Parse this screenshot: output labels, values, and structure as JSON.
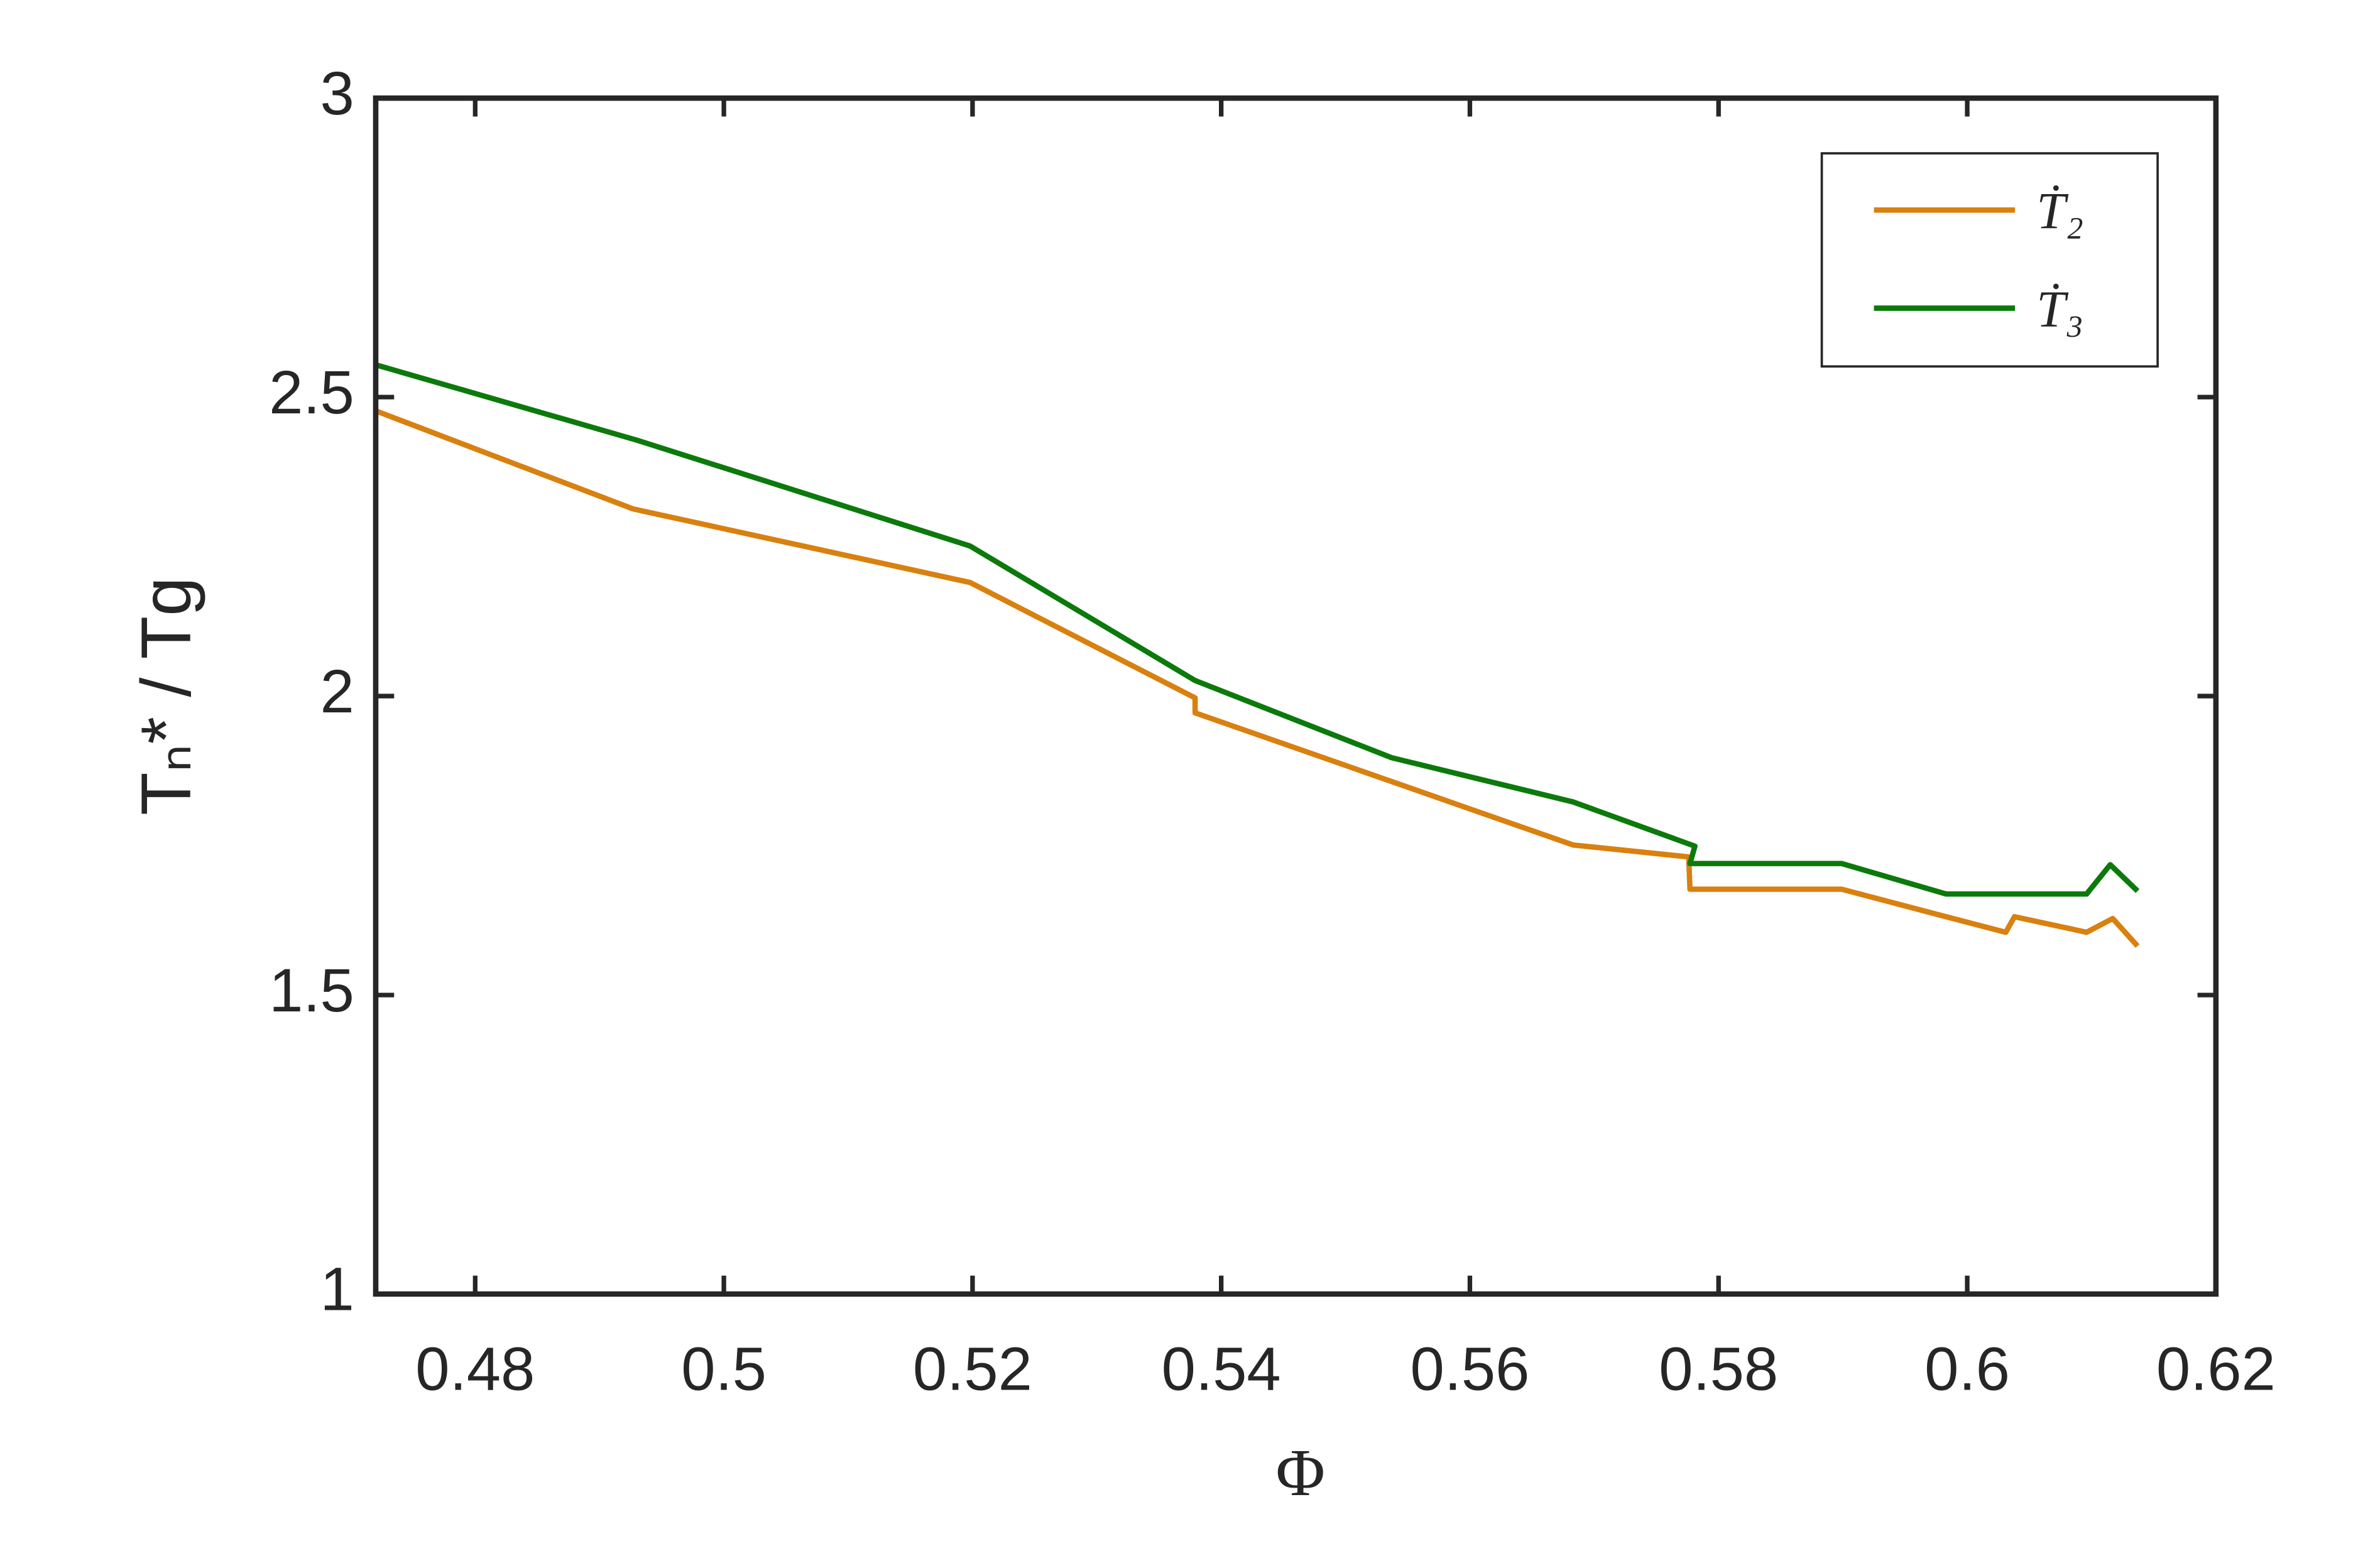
{
  "chart_data": {
    "type": "line",
    "x_label": "Φ",
    "y_label": "Tₙ* / Tg",
    "xlim": [
      0.472,
      0.62
    ],
    "xticks": [
      0.48,
      0.5,
      0.52,
      0.54,
      0.56,
      0.58,
      0.6,
      0.62
    ],
    "ylim": [
      1,
      3
    ],
    "yticks": [
      1,
      1.5,
      2,
      2.5,
      3
    ],
    "legend": "upper right",
    "series": [
      {
        "name": "Ṫ₂",
        "color": "#d9800f",
        "x": [
          0.472,
          0.4927,
          0.5198,
          0.5379,
          0.5379,
          0.5683,
          0.5776,
          0.5777,
          0.5899,
          0.5983,
          0.6031,
          0.6038,
          0.6096,
          0.6117,
          0.6137
        ],
        "values": [
          2.477,
          2.313,
          2.19,
          1.997,
          1.972,
          1.751,
          1.731,
          1.677,
          1.677,
          1.631,
          1.605,
          1.631,
          1.605,
          1.628,
          1.582
        ]
      },
      {
        "name": "Ṫ₃",
        "color": "#0b7a0b",
        "x": [
          0.472,
          0.493,
          0.5198,
          0.5379,
          0.5537,
          0.5683,
          0.5781,
          0.5777,
          0.5899,
          0.5983,
          0.6096,
          0.6115,
          0.6137
        ],
        "values": [
          2.554,
          2.428,
          2.251,
          2.026,
          1.897,
          1.823,
          1.749,
          1.72,
          1.72,
          1.669,
          1.669,
          1.718,
          1.674
        ]
      }
    ]
  }
}
